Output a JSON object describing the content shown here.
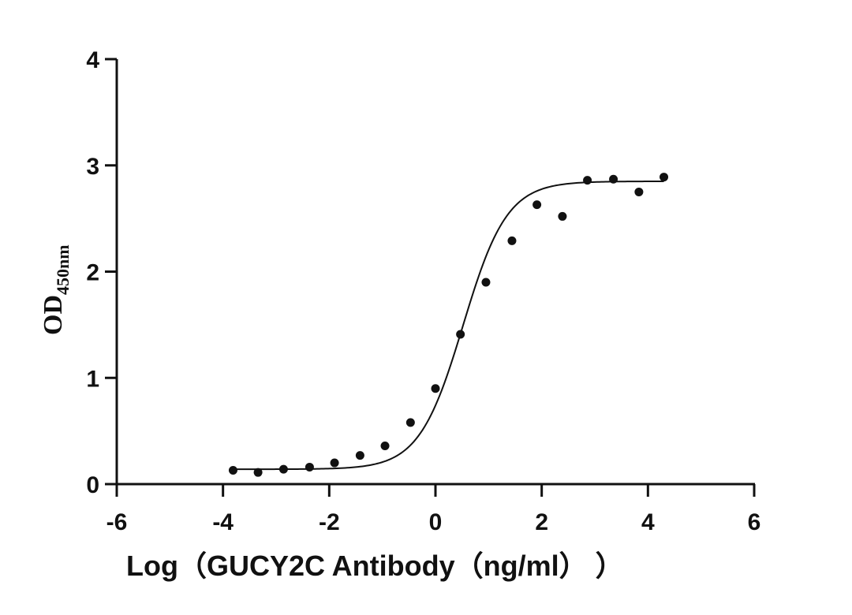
{
  "chart_data": {
    "type": "scatter",
    "title": "",
    "xlabel": "Log（GUCY2C Antibody（ng/ml）  ）",
    "ylabel": "OD",
    "ylabel_subscript": "450nm",
    "xlim": [
      -6,
      6
    ],
    "ylim": [
      0,
      4
    ],
    "x_ticks": [
      -6,
      -4,
      -2,
      0,
      2,
      4,
      6
    ],
    "y_ticks": [
      0,
      1,
      2,
      3,
      4
    ],
    "grid": false,
    "legend": null,
    "series": [
      {
        "name": "GUCY2C Antibody",
        "marker": "circle",
        "color": "#111111",
        "x": [
          -3.81,
          -3.34,
          -2.86,
          -2.37,
          -1.9,
          -1.42,
          -0.95,
          -0.47,
          0.0,
          0.47,
          0.95,
          1.44,
          1.91,
          2.39,
          2.86,
          3.35,
          3.83,
          4.3
        ],
        "y": [
          0.13,
          0.11,
          0.14,
          0.16,
          0.2,
          0.27,
          0.36,
          0.58,
          0.9,
          1.41,
          1.9,
          2.29,
          2.63,
          2.52,
          2.86,
          2.87,
          2.75,
          2.89
        ]
      }
    ],
    "fit_curve": {
      "type": "4PL sigmoid",
      "bottom": 0.14,
      "top": 2.85,
      "log_ec50": 0.52,
      "hill_slope": 1.05,
      "x_range": [
        -3.81,
        4.3
      ],
      "color": "#111111"
    }
  }
}
